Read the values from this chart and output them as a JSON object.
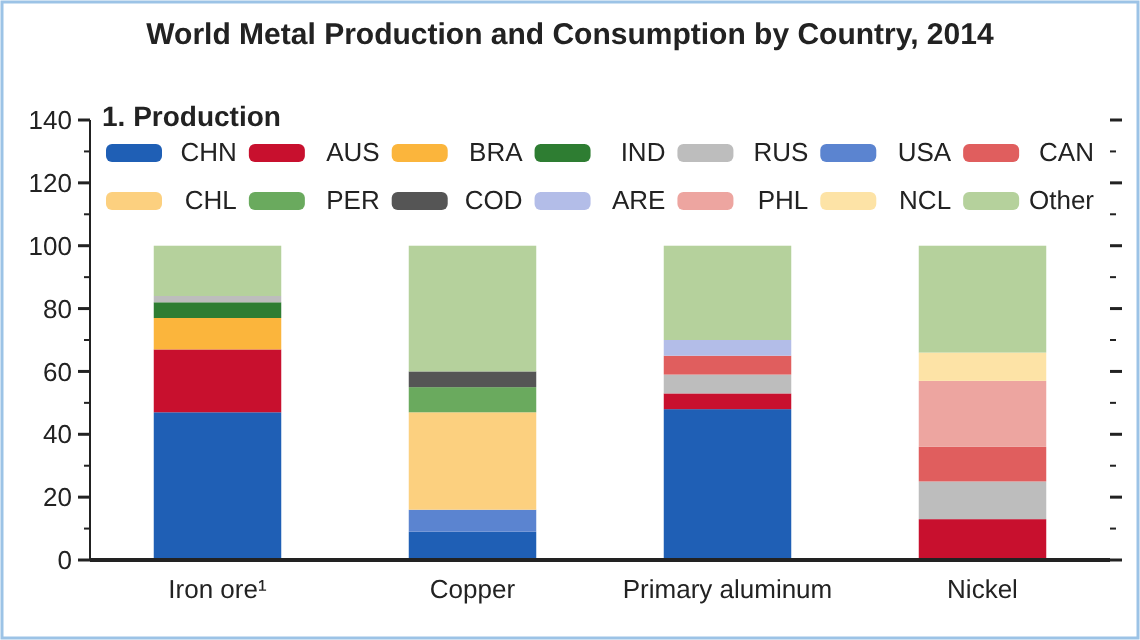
{
  "chart_data": {
    "type": "bar",
    "title": "World Metal Production and Consumption by Country, 2014",
    "subtitle": "1. Production",
    "stacked": true,
    "legend": "top",
    "grid": false,
    "categories": [
      "Iron ore¹",
      "Copper",
      "Primary aluminum",
      "Nickel"
    ],
    "ylim": [
      0,
      140
    ],
    "yticks": [
      0,
      {
        "value": 10,
        "label": null
      },
      20,
      {
        "value": 30,
        "label": null
      },
      40,
      {
        "value": 50,
        "label": null
      },
      60,
      {
        "value": 70,
        "label": null
      },
      80,
      {
        "value": 90,
        "label": null
      },
      100,
      {
        "value": 110,
        "label": null
      },
      120,
      {
        "value": 130,
        "label": null
      },
      140
    ],
    "series": [
      {
        "name": "CHN",
        "color": "#1f5fb5",
        "values": [
          47,
          9,
          48,
          null
        ]
      },
      {
        "name": "AUS",
        "color": "#c8102e",
        "values": [
          20,
          null,
          5,
          13
        ]
      },
      {
        "name": "BRA",
        "color": "#fbb53c",
        "values": [
          10,
          null,
          null,
          null
        ]
      },
      {
        "name": "IND",
        "color": "#2e7d32",
        "values": [
          5,
          null,
          null,
          null
        ]
      },
      {
        "name": "RUS",
        "color": "#bdbdbd",
        "values": [
          2,
          null,
          6,
          12
        ]
      },
      {
        "name": "USA",
        "color": "#5b84d0",
        "values": [
          null,
          7,
          null,
          null
        ]
      },
      {
        "name": "CAN",
        "color": "#e05e5e",
        "values": [
          null,
          null,
          6,
          11
        ]
      },
      {
        "name": "CHL",
        "color": "#fcd07f",
        "values": [
          null,
          31,
          null,
          null
        ]
      },
      {
        "name": "PER",
        "color": "#6aaa5e",
        "values": [
          null,
          8,
          null,
          null
        ]
      },
      {
        "name": "COD",
        "color": "#555555",
        "values": [
          null,
          5,
          null,
          null
        ]
      },
      {
        "name": "ARE",
        "color": "#b3bde8",
        "values": [
          null,
          null,
          5,
          null
        ]
      },
      {
        "name": "PHL",
        "color": "#eda5a0",
        "values": [
          null,
          null,
          null,
          21
        ]
      },
      {
        "name": "NCL",
        "color": "#fde3a6",
        "values": [
          null,
          null,
          null,
          9
        ]
      },
      {
        "name": "Other",
        "color": "#b5d19c",
        "values": [
          16,
          40,
          30,
          34
        ]
      }
    ]
  }
}
